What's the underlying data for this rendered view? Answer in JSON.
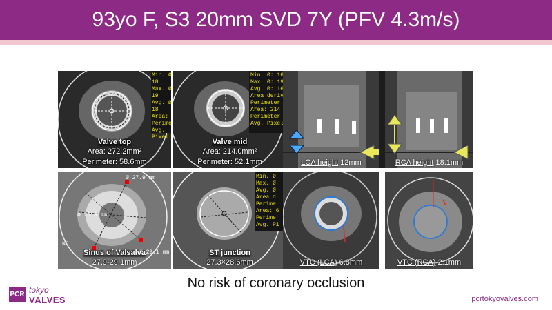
{
  "title": "93yo F, S3 20mm SVD 7Y (PFV 4.3m/s)",
  "panels": {
    "valve_top": {
      "label": "Valve top",
      "area": "Area: 272.2mm²",
      "perimeter": "Perimeter: 58.6mm"
    },
    "valve_mid": {
      "label": "Valve mid",
      "area": "Area: 214.0mm²",
      "perimeter": "Perimeter: 52.1mm"
    },
    "lca_height": {
      "label": "LCA height",
      "value": "12mm"
    },
    "rca_height": {
      "label": "RCA height",
      "value": "18.1mm"
    },
    "sinus": {
      "label": "Sinus of Valsalva",
      "value": "27.9-29.1mm",
      "d1": "Ø 27.9 mm",
      "d2": "Ø 28.3 mm",
      "d3": "Ø 29.1 mm"
    },
    "st_junction": {
      "label": "ST junction",
      "value": "27.3×28.6mm"
    },
    "vtc_lca": {
      "label": "VTC (LCA)",
      "value": "6.8mm"
    },
    "vtc_rca": {
      "label": "VTC (RCA)",
      "value": "2.1mm"
    },
    "nc_label": "NC"
  },
  "conclusion": "No risk of coronary occlusion",
  "logo": {
    "box": "PCR",
    "tokyo": "tokyo",
    "valves": "VALVES"
  },
  "website": "pcrtokyovalves.com"
}
